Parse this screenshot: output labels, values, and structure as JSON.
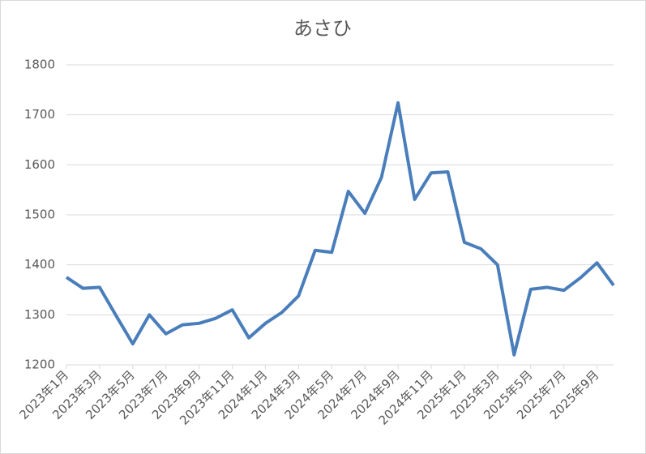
{
  "chart_data": {
    "type": "line",
    "title": "あさひ",
    "categories": [
      "2023年1月",
      null,
      "2023年3月",
      null,
      "2023年5月",
      null,
      "2023年7月",
      null,
      "2023年9月",
      null,
      "2023年11月",
      null,
      "2024年1月",
      null,
      "2024年3月",
      null,
      "2024年5月",
      null,
      "2024年7月",
      null,
      "2024年9月",
      null,
      "2024年11月",
      null,
      "2025年1月",
      null,
      "2025年3月",
      null,
      "2025年5月",
      null,
      "2025年7月",
      null,
      "2025年9月",
      null
    ],
    "series": [
      {
        "name": "あさひ",
        "color": "#4a7ebb",
        "values": [
          1375,
          1353,
          1355,
          1298,
          1242,
          1300,
          1262,
          1280,
          1283,
          1293,
          1310,
          1254,
          1283,
          1305,
          1338,
          1429,
          1425,
          1547,
          1503,
          1575,
          1724,
          1531,
          1584,
          1586,
          1445,
          1432,
          1400,
          1220,
          1351,
          1355,
          1349,
          1374,
          1404,
          1359
        ]
      }
    ],
    "ylim": [
      1200,
      1800
    ],
    "yticks": [
      1200,
      1300,
      1400,
      1500,
      1600,
      1700,
      1800
    ],
    "grid": true
  }
}
